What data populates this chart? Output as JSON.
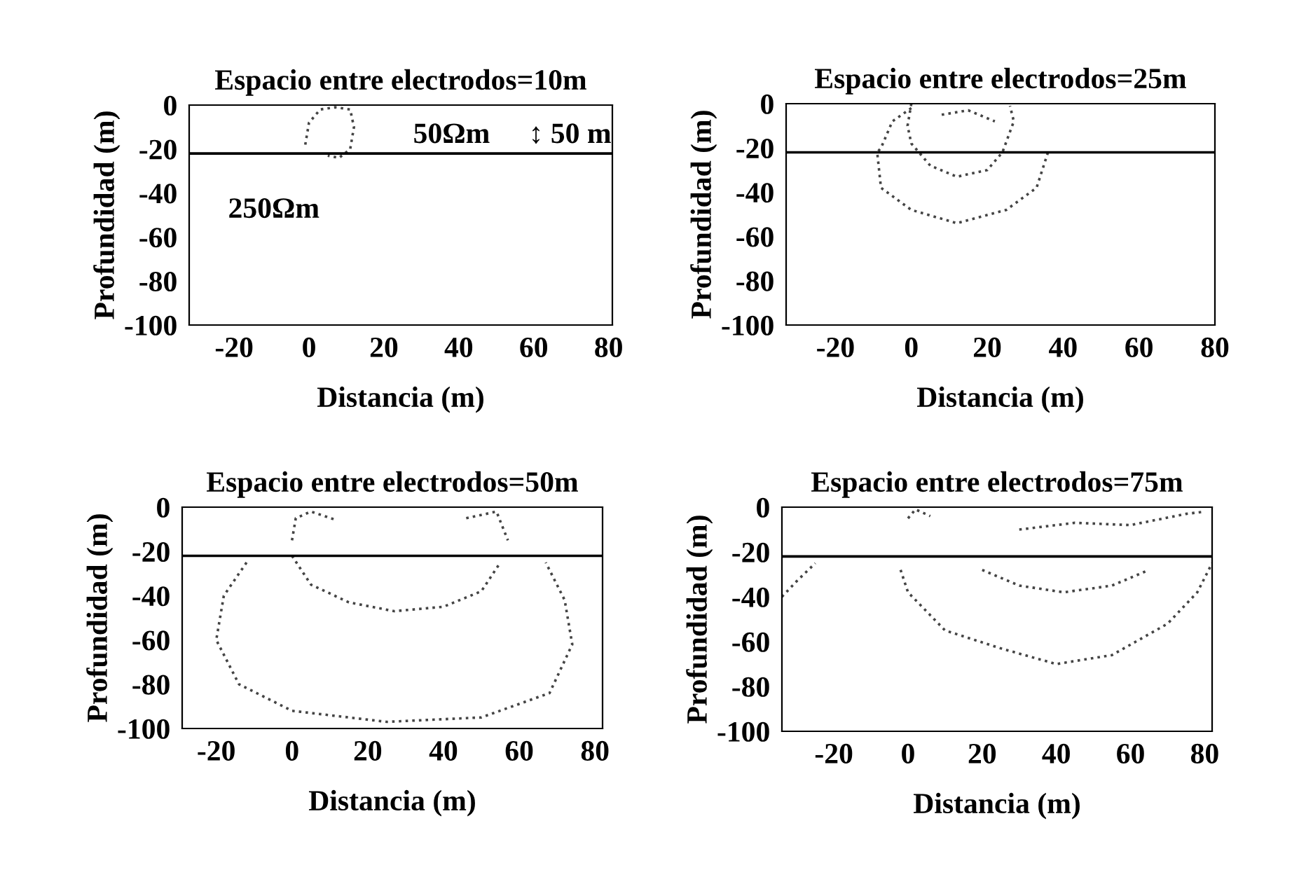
{
  "chart_data": [
    {
      "type": "line",
      "title": "Espacio entre electrodos=10m",
      "xlabel": "Distancia (m)",
      "ylabel": "Profundidad (m)",
      "xlim": [
        -32,
        81
      ],
      "ylim": [
        -100,
        0
      ],
      "xticks": [
        -20,
        0,
        20,
        40,
        60,
        80
      ],
      "yticks": [
        -100,
        -80,
        -60,
        -40,
        -20,
        0
      ],
      "line_style": "dotted",
      "grid": false,
      "legend": false,
      "series": [
        {
          "color": "#444444",
          "x": [
            -1,
            0,
            3,
            7,
            11,
            12,
            11,
            8,
            5
          ],
          "values": [
            -18,
            -8,
            -2,
            -1,
            -2,
            -10,
            -20,
            -24,
            -23
          ]
        }
      ],
      "ref_lines": [
        {
          "axis": "y",
          "value": -22,
          "color": "#000000",
          "line_style": "solid"
        }
      ],
      "annotations": [
        "50Ωm",
        "↕ 50 m",
        "250Ωm"
      ]
    },
    {
      "type": "line",
      "title": "Espacio entre electrodos=25m",
      "xlabel": "Distancia (m)",
      "ylabel": "Profundidad (m)",
      "xlim": [
        -33,
        80
      ],
      "ylim": [
        -100,
        0
      ],
      "xticks": [
        -20,
        0,
        20,
        40,
        60,
        80
      ],
      "yticks": [
        -100,
        -80,
        -60,
        -40,
        -20,
        0
      ],
      "line_style": "dotted",
      "grid": false,
      "legend": false,
      "series": [
        {
          "color": "#444444",
          "x": [
            0,
            -5,
            -8,
            -9,
            -8,
            0,
            12,
            25,
            33,
            36
          ],
          "values": [
            -2,
            -8,
            -20,
            -22,
            -38,
            -48,
            -54,
            -48,
            -38,
            -22
          ]
        },
        {
          "color": "#444444",
          "x": [
            0,
            -1,
            0,
            5,
            12,
            20,
            24,
            27,
            26
          ],
          "values": [
            0,
            -10,
            -18,
            -28,
            -33,
            -30,
            -22,
            -8,
            -1
          ]
        },
        {
          "color": "#444444",
          "x": [
            8,
            15,
            22
          ],
          "values": [
            -5,
            -3,
            -8
          ]
        }
      ],
      "ref_lines": [
        {
          "axis": "y",
          "value": -22,
          "color": "#000000",
          "line_style": "solid"
        }
      ]
    },
    {
      "type": "line",
      "title": "Espacio entre electrodos=50m",
      "xlabel": "Distancia (m)",
      "ylabel": "Profundidad (m)",
      "xlim": [
        -29,
        82
      ],
      "ylim": [
        -100,
        0
      ],
      "xticks": [
        -20,
        0,
        20,
        40,
        60,
        80
      ],
      "yticks": [
        -100,
        -80,
        -60,
        -40,
        -20,
        0
      ],
      "line_style": "dotted",
      "grid": false,
      "legend": false,
      "series": [
        {
          "color": "#444444",
          "x": [
            0,
            1,
            5,
            12
          ],
          "values": [
            -15,
            -5,
            -2,
            -6
          ]
        },
        {
          "color": "#444444",
          "x": [
            0,
            5,
            15,
            27,
            40,
            50,
            55
          ],
          "values": [
            -22,
            -35,
            -43,
            -47,
            -45,
            -38,
            -25
          ]
        },
        {
          "color": "#444444",
          "x": [
            46,
            54,
            57
          ],
          "values": [
            -5,
            -2,
            -15
          ]
        },
        {
          "color": "#444444",
          "x": [
            -12,
            -18,
            -20,
            -14,
            0,
            25,
            50,
            68,
            74,
            72,
            67
          ],
          "values": [
            -25,
            -40,
            -60,
            -80,
            -92,
            -97,
            -95,
            -84,
            -62,
            -42,
            -25
          ]
        }
      ],
      "ref_lines": [
        {
          "axis": "y",
          "value": -22,
          "color": "#000000",
          "line_style": "solid"
        }
      ]
    },
    {
      "type": "line",
      "title": "Espacio entre electrodos=75m",
      "xlabel": "Distancia (m)",
      "ylabel": "Profundidad (m)",
      "xlim": [
        -34,
        82
      ],
      "ylim": [
        -100,
        0
      ],
      "xticks": [
        -20,
        0,
        20,
        40,
        60,
        80
      ],
      "yticks": [
        -100,
        -80,
        -60,
        -40,
        -20,
        0
      ],
      "line_style": "dotted",
      "grid": false,
      "legend": false,
      "series": [
        {
          "color": "#444444",
          "x": [
            0,
            2,
            6
          ],
          "values": [
            -5,
            -1,
            -4
          ]
        },
        {
          "color": "#444444",
          "x": [
            20,
            30,
            42,
            55,
            65
          ],
          "values": [
            -28,
            -35,
            -38,
            -35,
            -28
          ]
        },
        {
          "color": "#444444",
          "x": [
            30,
            45,
            60,
            75,
            80
          ],
          "values": [
            -10,
            -7,
            -8,
            -3,
            -2
          ]
        },
        {
          "color": "#444444",
          "x": [
            -2,
            0,
            10,
            25,
            40,
            55,
            70,
            78,
            82
          ],
          "values": [
            -28,
            -38,
            -55,
            -63,
            -70,
            -66,
            -52,
            -38,
            -25
          ]
        },
        {
          "color": "#444444",
          "x": [
            -34,
            -30,
            -25
          ],
          "values": [
            -40,
            -33,
            -25
          ]
        }
      ],
      "ref_lines": [
        {
          "axis": "y",
          "value": -22,
          "color": "#000000",
          "line_style": "solid"
        }
      ]
    }
  ]
}
